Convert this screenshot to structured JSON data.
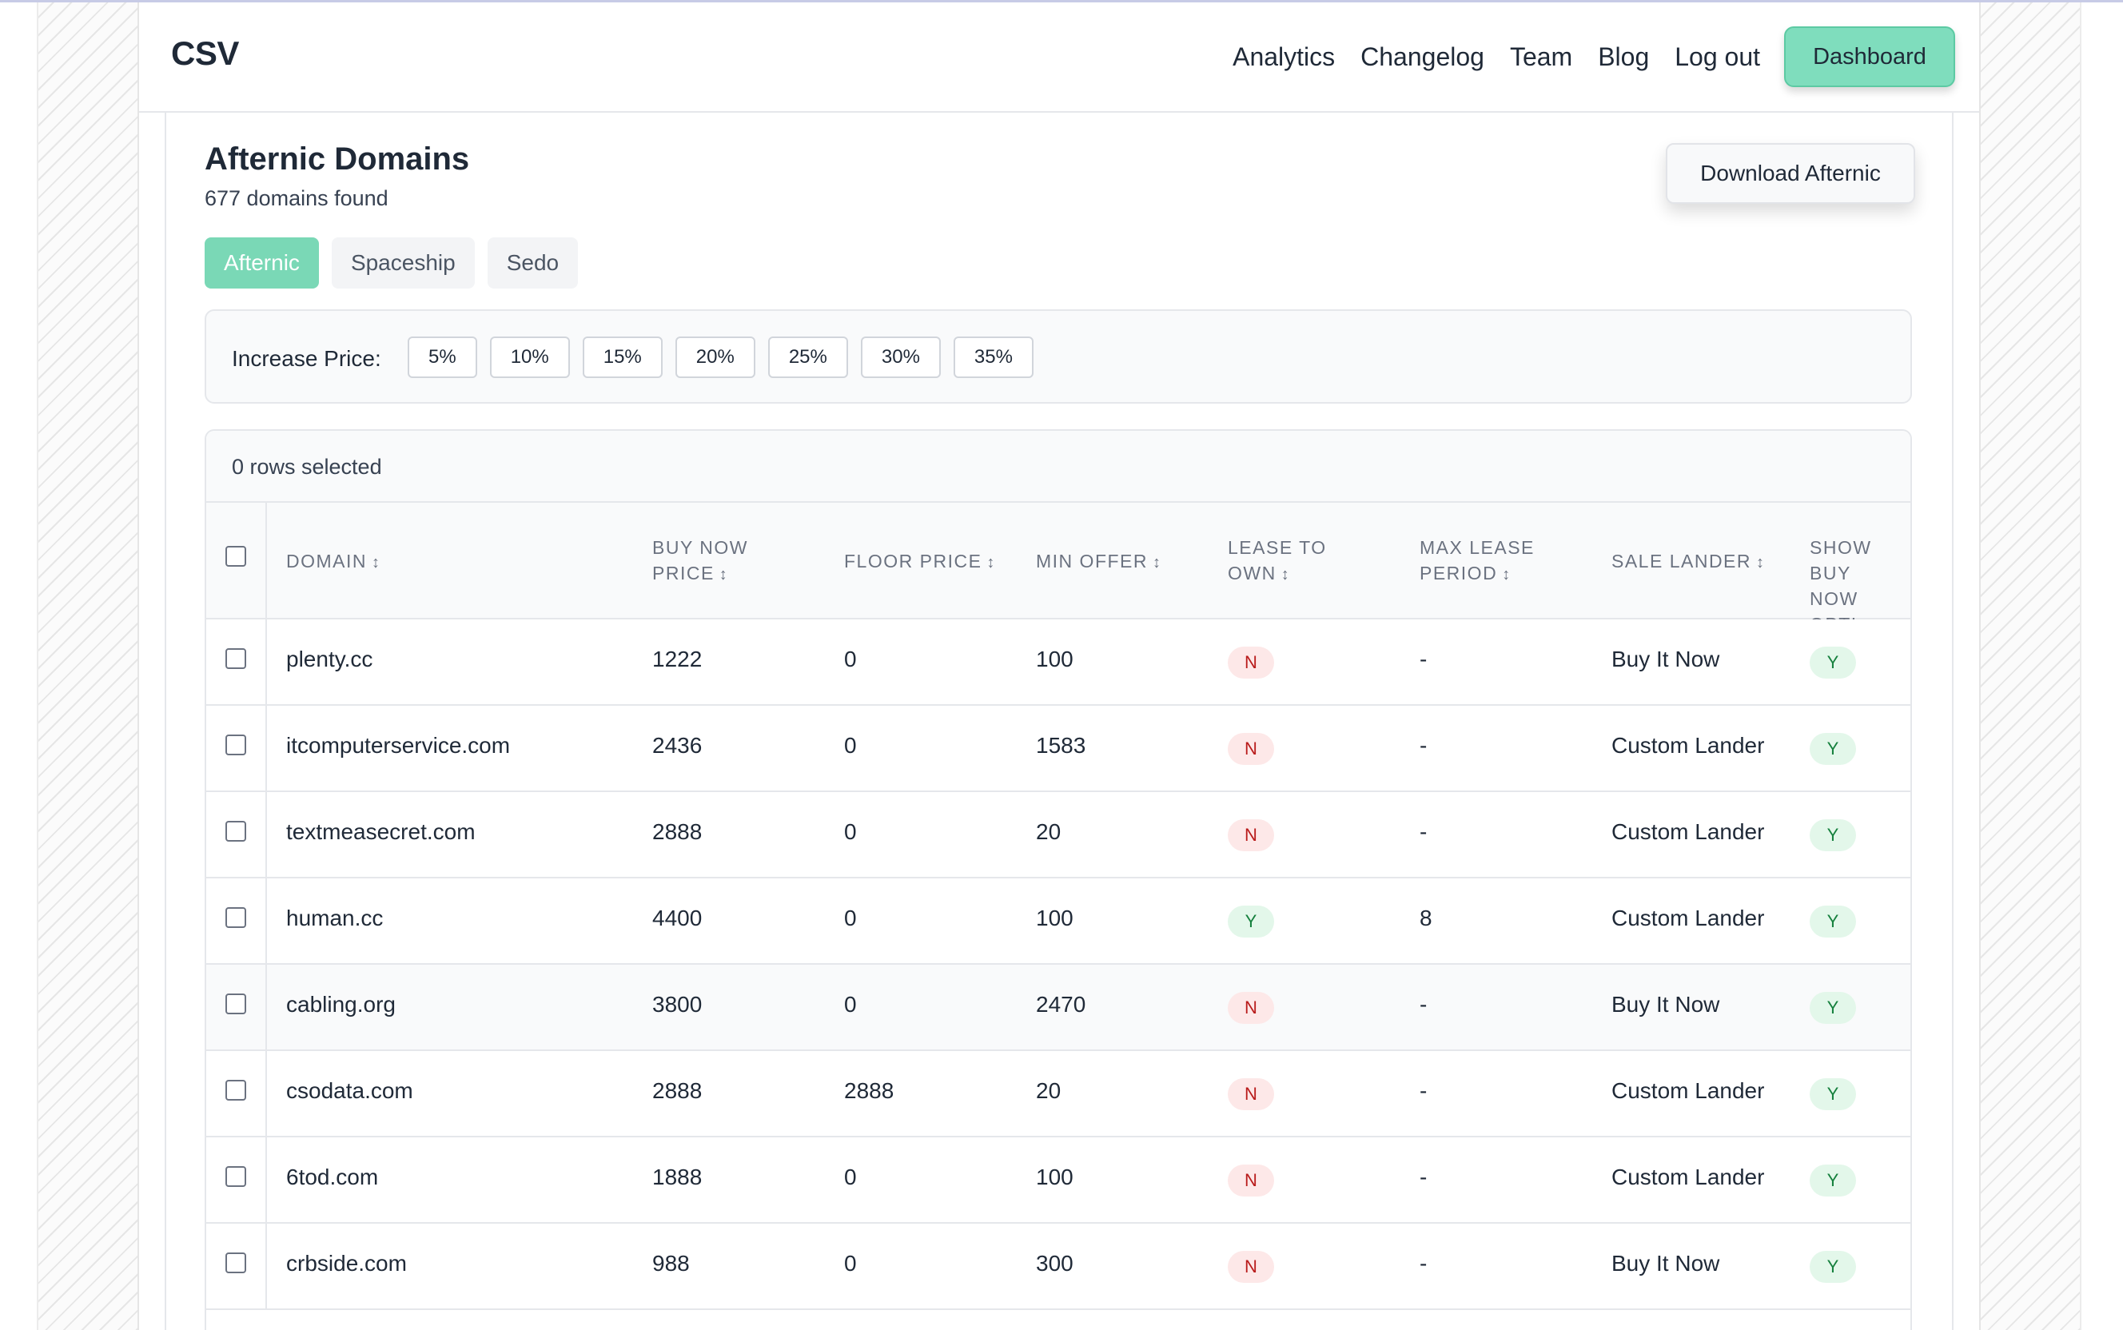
{
  "navbar": {
    "brand": "CSV",
    "links": [
      "Analytics",
      "Changelog",
      "Team",
      "Blog",
      "Log out"
    ],
    "dashboard_label": "Dashboard"
  },
  "page": {
    "title": "Afternic Domains",
    "subtitle": "677 domains found",
    "download_label": "Download Afternic"
  },
  "tabs": [
    {
      "label": "Afternic",
      "active": true
    },
    {
      "label": "Spaceship",
      "active": false
    },
    {
      "label": "Sedo",
      "active": false
    }
  ],
  "increase_price": {
    "label": "Increase Price:",
    "options": [
      "5%",
      "10%",
      "15%",
      "20%",
      "25%",
      "30%",
      "35%"
    ]
  },
  "table": {
    "selection_text": "0 rows selected",
    "sort_icon": "↕",
    "headers": {
      "domain": "DOMAIN",
      "buy_now_price_1": "BUY NOW",
      "buy_now_price_2": "PRICE",
      "floor_price": "FLOOR PRICE",
      "min_offer": "MIN OFFER",
      "lease_to_own_1": "LEASE TO",
      "lease_to_own_2": "OWN",
      "max_lease_period_1": "MAX LEASE",
      "max_lease_period_2": "PERIOD",
      "sale_lander": "SALE LANDER",
      "show_buy_now_1": "SHOW BUY",
      "show_buy_now_2": "NOW OPTI"
    },
    "rows": [
      {
        "domain": "plenty.cc",
        "buy_now": "1222",
        "floor": "0",
        "min_offer": "100",
        "lease": "N",
        "max_lease": "-",
        "lander": "Buy It Now",
        "show_buy": "Y"
      },
      {
        "domain": "itcomputerservice.com",
        "buy_now": "2436",
        "floor": "0",
        "min_offer": "1583",
        "lease": "N",
        "max_lease": "-",
        "lander": "Custom Lander",
        "show_buy": "Y"
      },
      {
        "domain": "textmeasecret.com",
        "buy_now": "2888",
        "floor": "0",
        "min_offer": "20",
        "lease": "N",
        "max_lease": "-",
        "lander": "Custom Lander",
        "show_buy": "Y"
      },
      {
        "domain": "human.cc",
        "buy_now": "4400",
        "floor": "0",
        "min_offer": "100",
        "lease": "Y",
        "max_lease": "8",
        "lander": "Custom Lander",
        "show_buy": "Y"
      },
      {
        "domain": "cabling.org",
        "buy_now": "3800",
        "floor": "0",
        "min_offer": "2470",
        "lease": "N",
        "max_lease": "-",
        "lander": "Buy It Now",
        "show_buy": "Y"
      },
      {
        "domain": "csodata.com",
        "buy_now": "2888",
        "floor": "2888",
        "min_offer": "20",
        "lease": "N",
        "max_lease": "-",
        "lander": "Custom Lander",
        "show_buy": "Y"
      },
      {
        "domain": "6tod.com",
        "buy_now": "1888",
        "floor": "0",
        "min_offer": "100",
        "lease": "N",
        "max_lease": "-",
        "lander": "Custom Lander",
        "show_buy": "Y"
      },
      {
        "domain": "crbside.com",
        "buy_now": "988",
        "floor": "0",
        "min_offer": "300",
        "lease": "N",
        "max_lease": "-",
        "lander": "Buy It Now",
        "show_buy": "Y"
      }
    ]
  },
  "colors": {
    "accent": "#7ad8b6",
    "badge_no_bg": "#fde8e8",
    "badge_no_text": "#b91c1c",
    "badge_yes_bg": "#e3f7ea",
    "badge_yes_text": "#15803d"
  }
}
